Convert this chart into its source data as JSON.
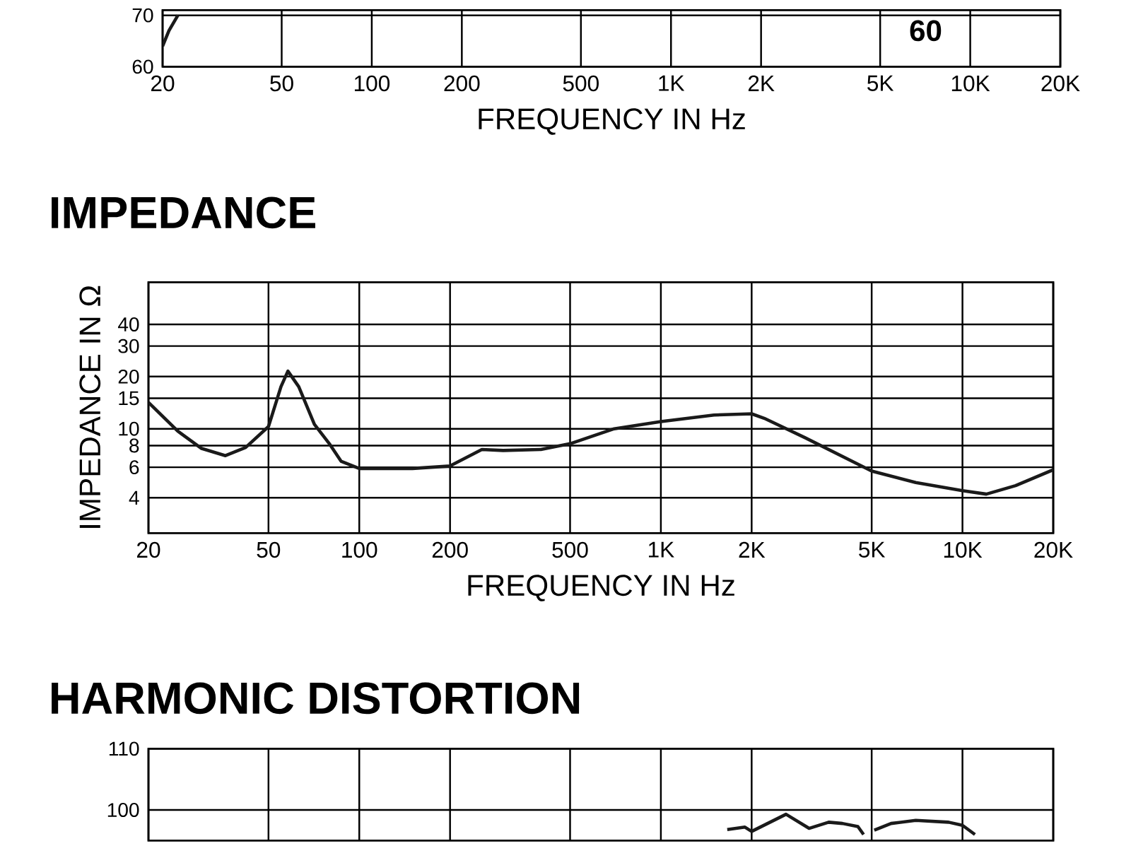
{
  "chart_data": [
    {
      "type": "line",
      "xlabel": "FREQUENCY IN Hz",
      "log": "x",
      "grid": true,
      "annotations": [
        "60"
      ],
      "xlim": [
        20,
        20000
      ],
      "ylim": [
        60,
        71
      ],
      "xticks": [
        20,
        50,
        100,
        200,
        500,
        {
          "value": 1000,
          "label": "1K"
        },
        {
          "value": 2000,
          "label": "2K"
        },
        {
          "value": 5000,
          "label": "5K"
        },
        {
          "value": 10000,
          "label": "10K"
        },
        {
          "value": 20000,
          "label": "20K"
        }
      ],
      "yticks": [
        60,
        70
      ],
      "series": [
        {
          "color": "#1a1a1a",
          "x": [
            20,
            21,
            22.5
          ],
          "values": [
            64,
            67,
            70
          ]
        }
      ]
    },
    {
      "type": "line",
      "title": "IMPEDANCE",
      "xlabel": "FREQUENCY IN Hz",
      "ylabel": "IMPEDANCE IN Ω",
      "log": "xy",
      "grid": true,
      "xlim": [
        20,
        20000
      ],
      "ylim": [
        2.5,
        70
      ],
      "xticks": [
        20,
        50,
        100,
        200,
        500,
        {
          "value": 1000,
          "label": "1K"
        },
        {
          "value": 2000,
          "label": "2K"
        },
        {
          "value": 5000,
          "label": "5K"
        },
        {
          "value": 10000,
          "label": "10K"
        },
        {
          "value": 20000,
          "label": "20K"
        }
      ],
      "yticks": [
        4,
        6,
        8,
        10,
        15,
        20,
        30,
        40
      ],
      "series": [
        {
          "color": "#1a1a1a",
          "x": [
            20,
            25,
            30,
            36,
            42,
            50,
            55,
            58,
            63,
            71,
            80,
            87,
            100,
            150,
            200,
            255,
            300,
            400,
            500,
            700,
            1000,
            1500,
            2000,
            2200,
            3000,
            5000,
            7000,
            10000,
            12000,
            15000,
            20000
          ],
          "values": [
            14.2,
            9.7,
            7.7,
            7.0,
            7.8,
            10.3,
            17.5,
            21.5,
            17.5,
            10.6,
            8.1,
            6.5,
            5.9,
            5.9,
            6.1,
            7.6,
            7.5,
            7.6,
            8.2,
            10,
            11,
            12,
            12.2,
            11.5,
            8.9,
            5.7,
            4.9,
            4.4,
            4.2,
            4.7,
            5.8
          ]
        }
      ]
    },
    {
      "type": "line",
      "title": "HARMONIC DISTORTION",
      "log": "x",
      "grid": true,
      "tick_labels": "y",
      "xlim": [
        20,
        20000
      ],
      "ylim": [
        95,
        110
      ],
      "xticks": [
        20,
        50,
        100,
        200,
        500,
        1000,
        2000,
        5000,
        10000,
        20000
      ],
      "yticks": [
        100,
        110
      ],
      "series": [
        {
          "color": "#1a1a1a",
          "x": [
            1660,
            1900,
            2000,
            2600,
            3100,
            3600,
            4000,
            4500,
            4700
          ],
          "values": [
            96.8,
            97.2,
            96.5,
            99.3,
            97,
            98,
            97.8,
            97.3,
            96
          ]
        },
        {
          "color": "#1a1a1a",
          "x": [
            5100,
            5800,
            7000,
            9000,
            10000,
            11000
          ],
          "values": [
            96.7,
            97.8,
            98.3,
            98,
            97.5,
            96
          ]
        }
      ]
    }
  ]
}
